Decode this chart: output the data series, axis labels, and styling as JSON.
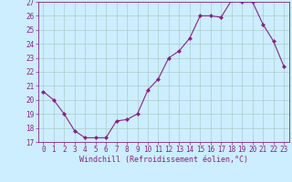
{
  "x": [
    0,
    1,
    2,
    3,
    4,
    5,
    6,
    7,
    8,
    9,
    10,
    11,
    12,
    13,
    14,
    15,
    16,
    17,
    18,
    19,
    20,
    21,
    22,
    23
  ],
  "y": [
    20.6,
    20.0,
    19.0,
    17.8,
    17.3,
    17.3,
    17.3,
    18.5,
    18.6,
    19.0,
    20.7,
    21.5,
    23.0,
    23.5,
    24.4,
    26.0,
    26.0,
    25.9,
    27.1,
    27.0,
    27.0,
    25.4,
    24.2,
    22.4
  ],
  "line_color": "#882288",
  "marker": "D",
  "marker_size": 2.0,
  "bg_color": "#cceeff",
  "grid_color": "#aacccc",
  "xlabel": "Windchill (Refroidissement éolien,°C)",
  "xlabel_color": "#882288",
  "tick_color": "#882288",
  "label_color": "#882288",
  "ylim": [
    17,
    27
  ],
  "yticks": [
    17,
    18,
    19,
    20,
    21,
    22,
    23,
    24,
    25,
    26,
    27
  ],
  "xlim": [
    -0.5,
    23.5
  ],
  "xticks": [
    0,
    1,
    2,
    3,
    4,
    5,
    6,
    7,
    8,
    9,
    10,
    11,
    12,
    13,
    14,
    15,
    16,
    17,
    18,
    19,
    20,
    21,
    22,
    23
  ],
  "xtick_labels": [
    "0",
    "1",
    "2",
    "3",
    "4",
    "5",
    "6",
    "7",
    "8",
    "9",
    "10",
    "11",
    "12",
    "13",
    "14",
    "15",
    "16",
    "17",
    "18",
    "19",
    "20",
    "21",
    "22",
    "23"
  ]
}
